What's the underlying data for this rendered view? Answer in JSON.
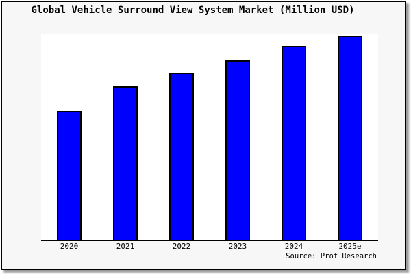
{
  "title": "Global Vehicle Surround View System Market (Million USD)",
  "source_credit": "Source: Prof Research",
  "colors": {
    "bar_fill": "#0000ff",
    "bar_border": "#000000",
    "figure_bg": "#f7f7f7",
    "plot_bg": "#ffffff",
    "axis": "#000000",
    "frame_border": "#000000",
    "frame_shadow": "#999999"
  },
  "chart_data": {
    "type": "bar",
    "categories": [
      "2020",
      "2021",
      "2022",
      "2023",
      "2024",
      "2025e"
    ],
    "values": [
      63,
      75,
      82,
      88,
      95,
      100
    ],
    "values_note": "y-axis is unlabeled in the figure; values are relative estimates with the 2025e bar normalized to 100",
    "title": "Global Vehicle Surround View System Market (Million USD)",
    "xlabel": "",
    "ylabel": "",
    "ylim": [
      0,
      101
    ],
    "grid": false,
    "legend": false,
    "y_axis_visible": false,
    "bar_color": "#0000ff",
    "annotations": [
      "Source: Prof Research"
    ]
  }
}
